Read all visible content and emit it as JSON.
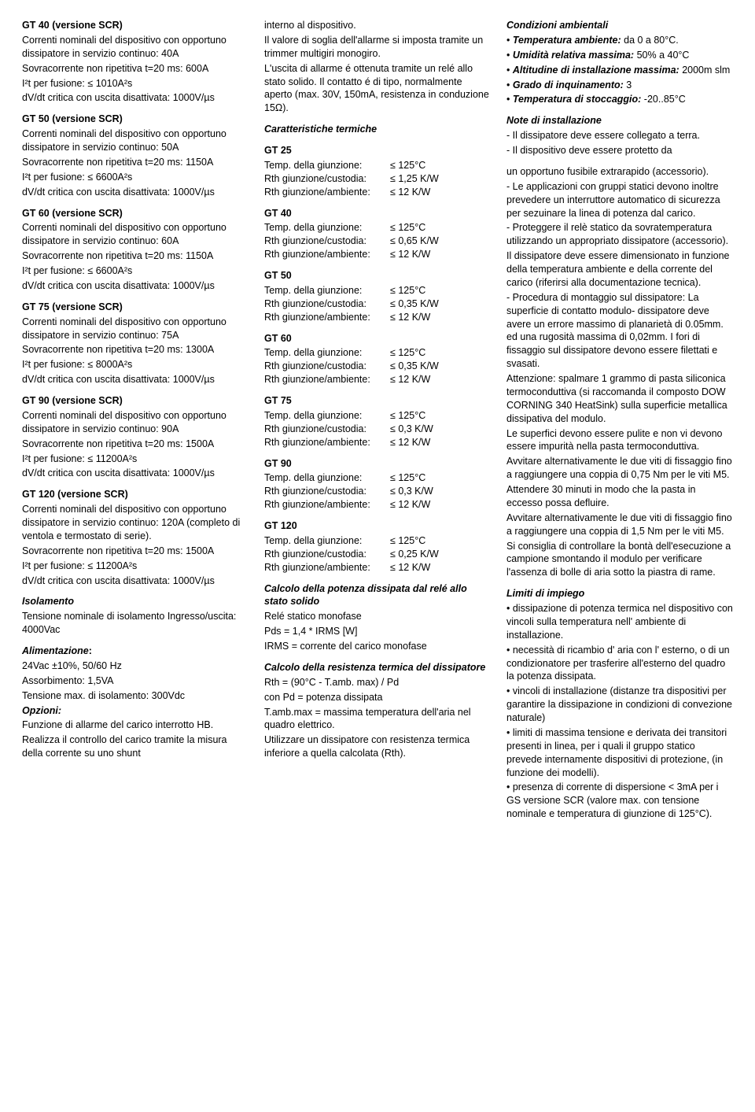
{
  "col1": {
    "items": [
      {
        "title": "GT 40 (versione SCR)",
        "lines": [
          "Correnti nominali del dispositivo con opportuno dissipatore in servizio continuo: 40A",
          "Sovracorrente non ripetitiva t=20 ms: 600A",
          "I²t per fusione: ≤ 1010A²s",
          "dV/dt critica con uscita disattivata: 1000V/µs"
        ]
      },
      {
        "title": "GT 50 (versione SCR)",
        "lines": [
          "Correnti nominali del dispositivo con opportuno dissipatore in servizio continuo: 50A",
          "Sovracorrente non ripetitiva t=20 ms: 1150A",
          "I²t per fusione: ≤ 6600A²s",
          "dV/dt critica con uscita disattivata: 1000V/µs"
        ]
      },
      {
        "title": "GT 60 (versione SCR)",
        "lines": [
          "Correnti nominali del dispositivo con opportuno dissipatore in servizio continuo: 60A",
          "Sovracorrente non ripetitiva t=20 ms: 1150A",
          "I²t per fusione: ≤ 6600A²s",
          "dV/dt critica con uscita disattivata: 1000V/µs"
        ]
      },
      {
        "title": "GT 75 (versione SCR)",
        "lines": [
          "Correnti nominali del dispositivo con opportuno dissipatore in servizio continuo: 75A",
          "Sovracorrente non ripetitiva t=20 ms: 1300A",
          "I²t per fusione: ≤ 8000A²s",
          "dV/dt critica con uscita disattivata: 1000V/µs"
        ]
      },
      {
        "title": "GT 90 (versione SCR)",
        "lines": [
          "Correnti nominali del dispositivo con opportuno dissipatore in servizio continuo: 90A",
          "Sovracorrente non ripetitiva t=20 ms: 1500A",
          "I²t per fusione: ≤ 11200A²s",
          "dV/dt critica con uscita disattivata: 1000V/µs"
        ]
      },
      {
        "title": "GT 120 (versione SCR)",
        "lines": [
          "Correnti nominali del dispositivo con opportuno dissipatore in servizio continuo: 120A (completo di ventola e termostato di serie).",
          "Sovracorrente non ripetitiva t=20 ms: 1500A",
          "I²t per fusione: ≤ 11200A²s",
          "dV/dt critica con uscita disattivata: 1000V/µs"
        ]
      }
    ],
    "isolamento": {
      "title": "Isolamento",
      "lines": [
        "Tensione nominale di  isolamento Ingresso/uscita: 4000Vac"
      ]
    },
    "alimentazione": {
      "title": "Alimentazione",
      "colon": ":",
      "lines": [
        "24Vac ±10%, 50/60 Hz",
        "Assorbimento: 1,5VA",
        "Tensione max. di isolamento: 300Vdc"
      ],
      "opzioni_title": "Opzioni:",
      "opzioni_lines": [
        "Funzione di allarme del carico interrotto HB.",
        "Realizza il controllo del carico tramite la misura della corrente su uno shunt"
      ]
    }
  },
  "col2": {
    "intro": [
      "interno al dispositivo.",
      "Il valore di soglia dell'allarme si imposta tramite un trimmer multigiri monogiro.",
      "L'uscita di allarme é ottenuta tramite un relé allo stato solido. Il contatto é di tipo, normalmente aperto (max. 30V, 150mA, resistenza in conduzione 15Ω)."
    ],
    "thermal_title": "Caratteristiche  termiche",
    "thermal": [
      {
        "name": "GT 25",
        "rows": [
          [
            "Temp. della giunzione:",
            "≤ 125°C"
          ],
          [
            "Rth giunzione/custodia:",
            "≤ 1,25 K/W"
          ],
          [
            "Rth giunzione/ambiente:",
            "≤ 12 K/W"
          ]
        ]
      },
      {
        "name": "GT 40",
        "rows": [
          [
            "Temp. della giunzione:",
            "≤ 125°C"
          ],
          [
            "Rth giunzione/custodia:",
            "≤ 0,65 K/W"
          ],
          [
            "Rth giunzione/ambiente:",
            "≤ 12 K/W"
          ]
        ]
      },
      {
        "name": "GT 50",
        "rows": [
          [
            "Temp. della giunzione:",
            "≤ 125°C"
          ],
          [
            "Rth giunzione/custodia:",
            "≤ 0,35 K/W"
          ],
          [
            "Rth giunzione/ambiente:",
            "≤ 12 K/W"
          ]
        ]
      },
      {
        "name": "GT 60",
        "rows": [
          [
            "Temp. della giunzione:",
            "≤ 125°C"
          ],
          [
            "Rth giunzione/custodia:",
            "≤ 0,35 K/W"
          ],
          [
            "Rth giunzione/ambiente:",
            "≤ 12 K/W"
          ]
        ]
      },
      {
        "name": "GT 75",
        "rows": [
          [
            "Temp. della giunzione:",
            "≤ 125°C"
          ],
          [
            "Rth giunzione/custodia:",
            "≤ 0,3 K/W"
          ],
          [
            "Rth giunzione/ambiente:",
            "≤ 12 K/W"
          ]
        ]
      },
      {
        "name": "GT 90",
        "rows": [
          [
            "Temp. della giunzione:",
            "≤ 125°C"
          ],
          [
            "Rth giunzione/custodia:",
            "≤ 0,3 K/W"
          ],
          [
            "Rth giunzione/ambiente:",
            "≤ 12 K/W"
          ]
        ]
      },
      {
        "name": "GT 120",
        "rows": [
          [
            "Temp. della giunzione:",
            "≤ 125°C"
          ],
          [
            "Rth giunzione/custodia:",
            "≤ 0,25 K/W"
          ],
          [
            "Rth giunzione/ambiente:",
            "≤ 12 K/W"
          ]
        ]
      }
    ],
    "calc_pot": {
      "title": "Calcolo della potenza dissipata dal relé allo stato solido",
      "lines": [
        "Relé statico monofase",
        "Pds = 1,4 * IRMS [W]",
        "IRMS = corrente del carico monofase"
      ]
    },
    "calc_res": {
      "title": "Calcolo della resistenza termica del dissipatore",
      "lines": [
        "Rth = (90°C - T.amb. max) / Pd",
        "con Pd = potenza dissipata",
        "T.amb.max = massima temperatura dell'aria nel quadro elettrico.",
        "Utilizzare un dissipatore con resistenza termica inferiore a quella calcolata (Rth)."
      ]
    },
    "cond_title": "Condizioni ambientali",
    "cond": [
      {
        "label": "Temperatura ambiente:",
        "rest": "  da 0 a 80°C."
      },
      {
        "label": "Umidità relativa massima:",
        "rest": " 50% a 40°C"
      },
      {
        "label": "Altitudine di installazione massima:",
        "rest": " 2000m slm"
      },
      {
        "label": "Grado di inquinamento:",
        "rest": " 3"
      },
      {
        "label": "Temperatura di stoccaggio:",
        "rest": " -20..85°C"
      }
    ],
    "note_title": "Note di installazione",
    "note": [
      "- Il dissipatore deve essere collegato a terra.",
      "- Il dispositivo deve essere  protetto da"
    ]
  },
  "col3": {
    "para": [
      "un opportuno  fusibile extrarapido (accessorio).",
      "- Le applicazioni con gruppi statici devono inoltre prevedere un interruttore automatico di sicurezza per sezuinare la linea di potenza dal carico.",
      "- Proteggere il relè statico da sovratemperatura utilizzando un appropriato dissipatore (accessorio).",
      "Il dissipatore deve essere dimensionato in funzione della temperatura ambiente e della corrente del carico (riferirsi alla documentazione tecnica).",
      "- Procedura di montaggio sul dissipatore: La superficie di contatto modulo- dissipatore deve avere un errore massimo di planarietà di 0.05mm. ed una rugosità massima di 0,02mm.  I fori di fissaggio sul dissipatore devono essere filettati e svasati.",
      "Attenzione: spalmare 1 grammo di pasta siliconica termoconduttiva (si raccomanda il composto DOW CORNING 340 HeatSink) sulla superficie metallica dissipativa del modulo.",
      "Le superfici devono essere pulite e non vi devono essere impurità nella pasta termoconduttiva.",
      "Avvitare alternativamente le due viti di fissaggio fino a raggiungere una coppia di  0,75 Nm per le viti M5.",
      "Attendere 30 minuti in modo che la pasta in eccesso possa defluire.",
      "Avvitare alternativamente le due viti di fissaggio fino a raggiungere una coppia di 1,5 Nm per le viti M5.",
      "Si consiglia di controllare la bontà dell'esecuzione a campione smontando il modulo per verificare l'assenza di bolle di aria sotto la piastra di rame."
    ],
    "limiti_title": "Limiti di impiego",
    "limiti": [
      "• dissipazione di potenza termica  nel dispositivo con vincoli sulla temperatura nell' ambiente di installazione.",
      "• necessità di ricambio d' aria con l' esterno, o di un condizionatore per trasferire all'esterno del quadro la potenza dissipata.",
      "• vincoli di installazione (distanze tra dispositivi per garantire la dissipazione in condizioni di convezione naturale)",
      "• limiti di massima tensione e derivata dei transitori presenti in linea, per i quali il gruppo statico prevede internamente dispositivi di protezione, (in funzione dei modelli).",
      "• presenza di corrente di dispersione < 3mA per i GS versione SCR  (valore max. con tensione nominale e temperatura di giunzione di 125°C)."
    ]
  }
}
